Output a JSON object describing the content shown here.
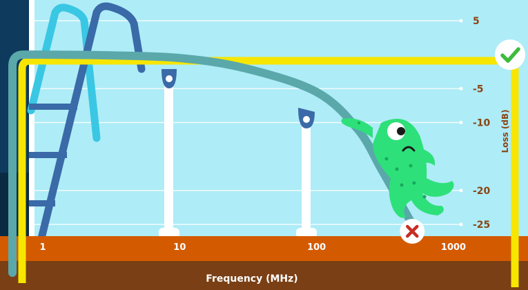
{
  "chart_data": {
    "type": "line",
    "xscale": "log",
    "x_ticks": [
      "1",
      "10",
      "100",
      "1000"
    ],
    "y_ticks": [
      "5",
      "-5",
      "-10",
      "-20",
      "-25"
    ],
    "xlabel": "Frequency (MHz)",
    "ylabel": "Loss (dB)",
    "xlim": [
      1,
      1000
    ],
    "ylim": [
      -25,
      5
    ],
    "grid": true,
    "series": [
      {
        "x": [
          1,
          3,
          10,
          30,
          100,
          200,
          300,
          500
        ],
        "y": [
          0,
          -0.1,
          -0.5,
          -2,
          -5.5,
          -11,
          -17,
          -25
        ]
      }
    ],
    "annotations": [
      {
        "icon": "check-icon",
        "x": 1000,
        "y": 0
      },
      {
        "icon": "cross-icon",
        "x": 500,
        "y": -25
      }
    ]
  },
  "colors": {
    "sky": "#aeecf7",
    "ground": "#d45a00",
    "ground_dark": "#7a3f14",
    "curve": "#5aa8aa",
    "yellow": "#f7e600",
    "slide_light": "#39c7e4",
    "slide_dark": "#3a6aa7",
    "tick_text": "#8b4513",
    "check": "#3dbb3d",
    "cross": "#c62d22",
    "creature": "#2ee07a"
  }
}
